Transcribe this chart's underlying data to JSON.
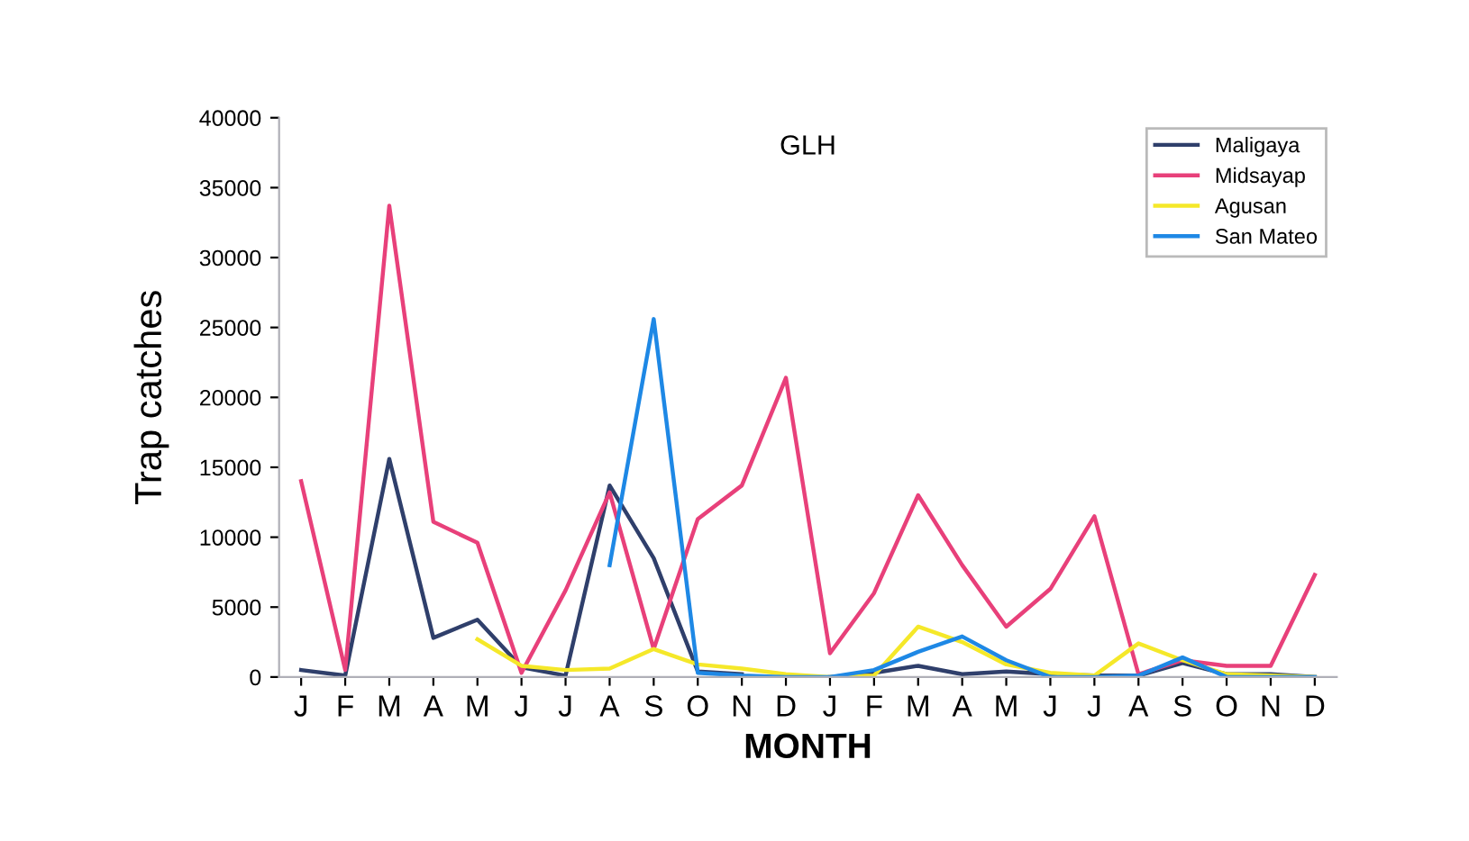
{
  "chart_data": {
    "type": "line",
    "title": "GLH",
    "xlabel": "MONTH",
    "ylabel": "Trap catches",
    "categories": [
      "J",
      "F",
      "M",
      "A",
      "M",
      "J",
      "J",
      "A",
      "S",
      "O",
      "N",
      "D",
      "J",
      "F",
      "M",
      "A",
      "M",
      "J",
      "J",
      "A",
      "S",
      "O",
      "N",
      "D"
    ],
    "series": [
      {
        "name": "Maligaya",
        "color": "#2f3f6b",
        "values": [
          500,
          100,
          15600,
          2800,
          4100,
          700,
          100,
          13700,
          8500,
          400,
          200,
          null,
          0,
          300,
          800,
          200,
          400,
          200,
          100,
          100,
          1000,
          200,
          200,
          0
        ]
      },
      {
        "name": "Midsayap",
        "color": "#e8407a",
        "values": [
          14000,
          500,
          33700,
          11100,
          9600,
          300,
          6200,
          13200,
          2000,
          11300,
          13700,
          21400,
          1700,
          6000,
          13000,
          8000,
          3600,
          6300,
          11500,
          200,
          1200,
          800,
          800,
          7300
        ]
      },
      {
        "name": "Agusan",
        "color": "#f5e829",
        "values": [
          null,
          null,
          null,
          null,
          2700,
          800,
          500,
          600,
          2000,
          900,
          600,
          200,
          0,
          100,
          3600,
          2500,
          900,
          300,
          100,
          2400,
          1200,
          200,
          100,
          0
        ]
      },
      {
        "name": "San Mateo",
        "color": "#1e88e5",
        "values": [
          null,
          null,
          null,
          null,
          null,
          null,
          null,
          8000,
          25600,
          300,
          100,
          0,
          0,
          500,
          1800,
          2900,
          1200,
          0,
          0,
          100,
          1400,
          0,
          0,
          0
        ]
      }
    ],
    "ylim": [
      0,
      40000
    ],
    "yticks": [
      0,
      5000,
      10000,
      15000,
      20000,
      25000,
      30000,
      35000,
      40000
    ],
    "grid": false,
    "legend": "top right",
    "marker": "none",
    "line_style": "solid"
  }
}
